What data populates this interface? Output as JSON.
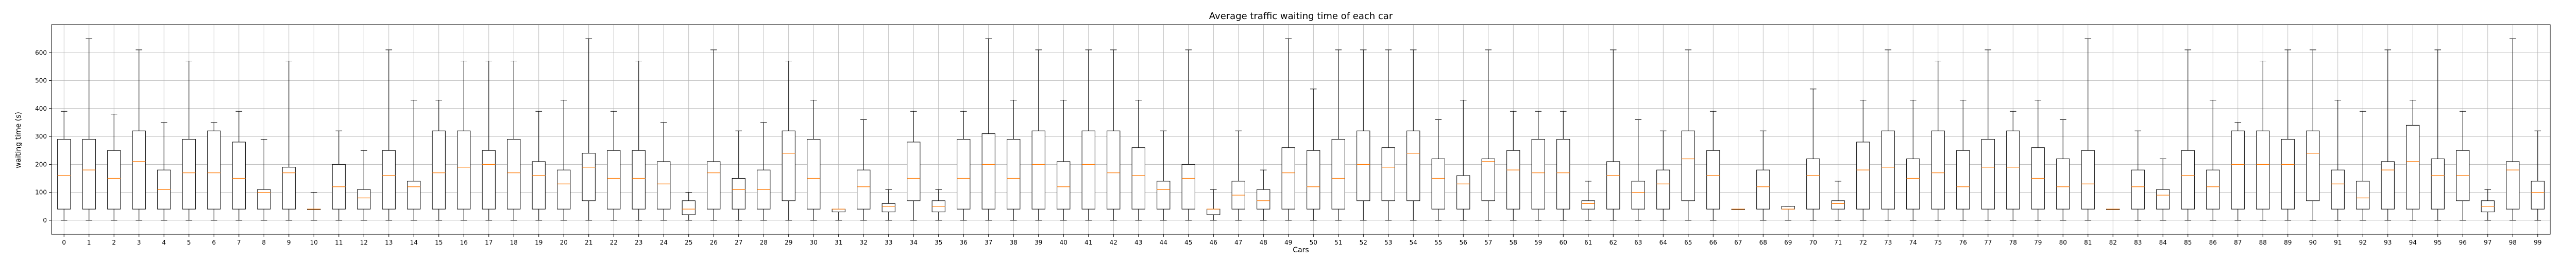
{
  "chart_data": {
    "type": "boxplot",
    "title": "Average traffic waiting time of each car",
    "xlabel": "Cars",
    "ylabel": "waiting time (s)",
    "ylim": [
      -50,
      700
    ],
    "yticks": [
      0,
      100,
      200,
      300,
      400,
      500,
      600
    ],
    "grid": true,
    "colors": {
      "box": "#000000",
      "median": "#ff7f0e",
      "grid": "#b0b0b0",
      "axes": "#000000"
    },
    "categories": [
      "0",
      "1",
      "2",
      "3",
      "4",
      "5",
      "6",
      "7",
      "8",
      "9",
      "10",
      "11",
      "12",
      "13",
      "14",
      "15",
      "16",
      "17",
      "18",
      "19",
      "20",
      "21",
      "22",
      "23",
      "24",
      "25",
      "26",
      "27",
      "28",
      "29",
      "30",
      "31",
      "32",
      "33",
      "34",
      "35",
      "36",
      "37",
      "38",
      "39",
      "40",
      "41",
      "42",
      "43",
      "44",
      "45",
      "46",
      "47",
      "48",
      "49",
      "50",
      "51",
      "52",
      "53",
      "54",
      "55",
      "56",
      "57",
      "58",
      "59",
      "60",
      "61",
      "62",
      "63",
      "64",
      "65",
      "66",
      "67",
      "68",
      "69",
      "70",
      "71",
      "72",
      "73",
      "74",
      "75",
      "76",
      "77",
      "78",
      "79",
      "80",
      "81",
      "82",
      "83",
      "84",
      "85",
      "86",
      "87",
      "88",
      "89",
      "90",
      "91",
      "92",
      "93",
      "94",
      "95",
      "96",
      "97",
      "98",
      "99"
    ],
    "boxes": [
      {
        "min": 0,
        "q1": 40,
        "median": 160,
        "q3": 290,
        "max": 390
      },
      {
        "min": 0,
        "q1": 40,
        "median": 180,
        "q3": 290,
        "max": 650
      },
      {
        "min": 0,
        "q1": 40,
        "median": 150,
        "q3": 250,
        "max": 380
      },
      {
        "min": 0,
        "q1": 40,
        "median": 210,
        "q3": 320,
        "max": 610
      },
      {
        "min": 0,
        "q1": 40,
        "median": 110,
        "q3": 180,
        "max": 350
      },
      {
        "min": 0,
        "q1": 40,
        "median": 170,
        "q3": 290,
        "max": 570
      },
      {
        "min": 0,
        "q1": 40,
        "median": 170,
        "q3": 320,
        "max": 350
      },
      {
        "min": 0,
        "q1": 40,
        "median": 150,
        "q3": 280,
        "max": 390
      },
      {
        "min": 0,
        "q1": 40,
        "median": 100,
        "q3": 110,
        "max": 290
      },
      {
        "min": 0,
        "q1": 40,
        "median": 170,
        "q3": 190,
        "max": 570
      },
      {
        "min": 0,
        "q1": 40,
        "median": 40,
        "q3": 40,
        "max": 100
      },
      {
        "min": 0,
        "q1": 40,
        "median": 120,
        "q3": 200,
        "max": 320
      },
      {
        "min": 0,
        "q1": 40,
        "median": 80,
        "q3": 110,
        "max": 250
      },
      {
        "min": 0,
        "q1": 40,
        "median": 160,
        "q3": 250,
        "max": 610
      },
      {
        "min": 0,
        "q1": 40,
        "median": 120,
        "q3": 140,
        "max": 430
      },
      {
        "min": 0,
        "q1": 40,
        "median": 170,
        "q3": 320,
        "max": 430
      },
      {
        "min": 0,
        "q1": 40,
        "median": 190,
        "q3": 320,
        "max": 570
      },
      {
        "min": 0,
        "q1": 40,
        "median": 200,
        "q3": 250,
        "max": 570
      },
      {
        "min": 0,
        "q1": 40,
        "median": 170,
        "q3": 290,
        "max": 570
      },
      {
        "min": 0,
        "q1": 40,
        "median": 160,
        "q3": 210,
        "max": 390
      },
      {
        "min": 0,
        "q1": 40,
        "median": 130,
        "q3": 180,
        "max": 430
      },
      {
        "min": 0,
        "q1": 70,
        "median": 190,
        "q3": 240,
        "max": 650
      },
      {
        "min": 0,
        "q1": 40,
        "median": 150,
        "q3": 250,
        "max": 390
      },
      {
        "min": 0,
        "q1": 40,
        "median": 150,
        "q3": 250,
        "max": 570
      },
      {
        "min": 0,
        "q1": 40,
        "median": 130,
        "q3": 210,
        "max": 350
      },
      {
        "min": 0,
        "q1": 20,
        "median": 40,
        "q3": 70,
        "max": 100
      },
      {
        "min": 0,
        "q1": 40,
        "median": 170,
        "q3": 210,
        "max": 610
      },
      {
        "min": 0,
        "q1": 40,
        "median": 110,
        "q3": 150,
        "max": 320
      },
      {
        "min": 0,
        "q1": 40,
        "median": 110,
        "q3": 180,
        "max": 350
      },
      {
        "min": 0,
        "q1": 70,
        "median": 240,
        "q3": 320,
        "max": 570
      },
      {
        "min": 0,
        "q1": 40,
        "median": 150,
        "q3": 290,
        "max": 430
      },
      {
        "min": 0,
        "q1": 30,
        "median": 40,
        "q3": 40,
        "max": 40
      },
      {
        "min": 0,
        "q1": 40,
        "median": 120,
        "q3": 180,
        "max": 360
      },
      {
        "min": 0,
        "q1": 30,
        "median": 50,
        "q3": 60,
        "max": 110
      },
      {
        "min": 0,
        "q1": 70,
        "median": 150,
        "q3": 280,
        "max": 390
      },
      {
        "min": 0,
        "q1": 30,
        "median": 50,
        "q3": 70,
        "max": 110
      },
      {
        "min": 0,
        "q1": 40,
        "median": 150,
        "q3": 290,
        "max": 390
      },
      {
        "min": 0,
        "q1": 40,
        "median": 200,
        "q3": 310,
        "max": 650
      },
      {
        "min": 0,
        "q1": 40,
        "median": 150,
        "q3": 290,
        "max": 430
      },
      {
        "min": 0,
        "q1": 40,
        "median": 200,
        "q3": 320,
        "max": 610
      },
      {
        "min": 0,
        "q1": 40,
        "median": 120,
        "q3": 210,
        "max": 430
      },
      {
        "min": 0,
        "q1": 40,
        "median": 200,
        "q3": 320,
        "max": 610
      },
      {
        "min": 0,
        "q1": 40,
        "median": 170,
        "q3": 320,
        "max": 610
      },
      {
        "min": 0,
        "q1": 40,
        "median": 160,
        "q3": 260,
        "max": 430
      },
      {
        "min": 0,
        "q1": 40,
        "median": 110,
        "q3": 140,
        "max": 320
      },
      {
        "min": 0,
        "q1": 40,
        "median": 150,
        "q3": 200,
        "max": 610
      },
      {
        "min": 0,
        "q1": 20,
        "median": 40,
        "q3": 40,
        "max": 110
      },
      {
        "min": 0,
        "q1": 40,
        "median": 90,
        "q3": 140,
        "max": 320
      },
      {
        "min": 0,
        "q1": 40,
        "median": 70,
        "q3": 110,
        "max": 180
      },
      {
        "min": 0,
        "q1": 40,
        "median": 170,
        "q3": 260,
        "max": 650
      },
      {
        "min": 0,
        "q1": 40,
        "median": 120,
        "q3": 250,
        "max": 470
      },
      {
        "min": 0,
        "q1": 40,
        "median": 150,
        "q3": 290,
        "max": 610
      },
      {
        "min": 0,
        "q1": 70,
        "median": 200,
        "q3": 320,
        "max": 610
      },
      {
        "min": 0,
        "q1": 70,
        "median": 190,
        "q3": 260,
        "max": 610
      },
      {
        "min": 0,
        "q1": 70,
        "median": 240,
        "q3": 320,
        "max": 610
      },
      {
        "min": 0,
        "q1": 40,
        "median": 150,
        "q3": 220,
        "max": 360
      },
      {
        "min": 0,
        "q1": 40,
        "median": 130,
        "q3": 160,
        "max": 430
      },
      {
        "min": 0,
        "q1": 70,
        "median": 210,
        "q3": 220,
        "max": 610
      },
      {
        "min": 0,
        "q1": 40,
        "median": 180,
        "q3": 250,
        "max": 390
      },
      {
        "min": 0,
        "q1": 40,
        "median": 170,
        "q3": 290,
        "max": 390
      },
      {
        "min": 0,
        "q1": 40,
        "median": 170,
        "q3": 290,
        "max": 390
      },
      {
        "min": 0,
        "q1": 40,
        "median": 60,
        "q3": 70,
        "max": 140
      },
      {
        "min": 0,
        "q1": 40,
        "median": 160,
        "q3": 210,
        "max": 610
      },
      {
        "min": 0,
        "q1": 40,
        "median": 100,
        "q3": 140,
        "max": 360
      },
      {
        "min": 0,
        "q1": 40,
        "median": 130,
        "q3": 180,
        "max": 320
      },
      {
        "min": 0,
        "q1": 70,
        "median": 220,
        "q3": 320,
        "max": 610
      },
      {
        "min": 0,
        "q1": 40,
        "median": 160,
        "q3": 250,
        "max": 390
      },
      {
        "min": 40,
        "q1": 40,
        "median": 40,
        "q3": 40,
        "max": 40
      },
      {
        "min": 0,
        "q1": 40,
        "median": 120,
        "q3": 180,
        "max": 320
      },
      {
        "min": 0,
        "q1": 40,
        "median": 40,
        "q3": 50,
        "max": 50
      },
      {
        "min": 0,
        "q1": 40,
        "median": 160,
        "q3": 220,
        "max": 470
      },
      {
        "min": 0,
        "q1": 40,
        "median": 60,
        "q3": 70,
        "max": 140
      },
      {
        "min": 0,
        "q1": 40,
        "median": 180,
        "q3": 280,
        "max": 430
      },
      {
        "min": 0,
        "q1": 40,
        "median": 190,
        "q3": 320,
        "max": 610
      },
      {
        "min": 0,
        "q1": 40,
        "median": 150,
        "q3": 220,
        "max": 430
      },
      {
        "min": 0,
        "q1": 40,
        "median": 170,
        "q3": 320,
        "max": 570
      },
      {
        "min": 0,
        "q1": 40,
        "median": 120,
        "q3": 250,
        "max": 430
      },
      {
        "min": 0,
        "q1": 40,
        "median": 190,
        "q3": 290,
        "max": 610
      },
      {
        "min": 0,
        "q1": 40,
        "median": 190,
        "q3": 320,
        "max": 390
      },
      {
        "min": 0,
        "q1": 40,
        "median": 150,
        "q3": 260,
        "max": 430
      },
      {
        "min": 0,
        "q1": 40,
        "median": 120,
        "q3": 220,
        "max": 360
      },
      {
        "min": 0,
        "q1": 40,
        "median": 130,
        "q3": 250,
        "max": 650
      },
      {
        "min": 40,
        "q1": 40,
        "median": 40,
        "q3": 40,
        "max": 40
      },
      {
        "min": 0,
        "q1": 40,
        "median": 120,
        "q3": 180,
        "max": 320
      },
      {
        "min": 0,
        "q1": 40,
        "median": 90,
        "q3": 110,
        "max": 220
      },
      {
        "min": 0,
        "q1": 40,
        "median": 160,
        "q3": 250,
        "max": 610
      },
      {
        "min": 0,
        "q1": 40,
        "median": 120,
        "q3": 180,
        "max": 430
      },
      {
        "min": 0,
        "q1": 40,
        "median": 200,
        "q3": 320,
        "max": 350
      },
      {
        "min": 0,
        "q1": 40,
        "median": 200,
        "q3": 320,
        "max": 570
      },
      {
        "min": 0,
        "q1": 40,
        "median": 200,
        "q3": 290,
        "max": 610
      },
      {
        "min": 0,
        "q1": 70,
        "median": 240,
        "q3": 320,
        "max": 610
      },
      {
        "min": 0,
        "q1": 40,
        "median": 130,
        "q3": 180,
        "max": 430
      },
      {
        "min": 0,
        "q1": 40,
        "median": 80,
        "q3": 140,
        "max": 390
      },
      {
        "min": 0,
        "q1": 40,
        "median": 180,
        "q3": 210,
        "max": 610
      },
      {
        "min": 0,
        "q1": 40,
        "median": 210,
        "q3": 340,
        "max": 430
      },
      {
        "min": 0,
        "q1": 40,
        "median": 160,
        "q3": 220,
        "max": 610
      },
      {
        "min": 0,
        "q1": 70,
        "median": 160,
        "q3": 250,
        "max": 390
      },
      {
        "min": 0,
        "q1": 30,
        "median": 50,
        "q3": 70,
        "max": 110
      },
      {
        "min": 0,
        "q1": 40,
        "median": 180,
        "q3": 210,
        "max": 650
      },
      {
        "min": 0,
        "q1": 40,
        "median": 100,
        "q3": 140,
        "max": 320
      }
    ]
  }
}
